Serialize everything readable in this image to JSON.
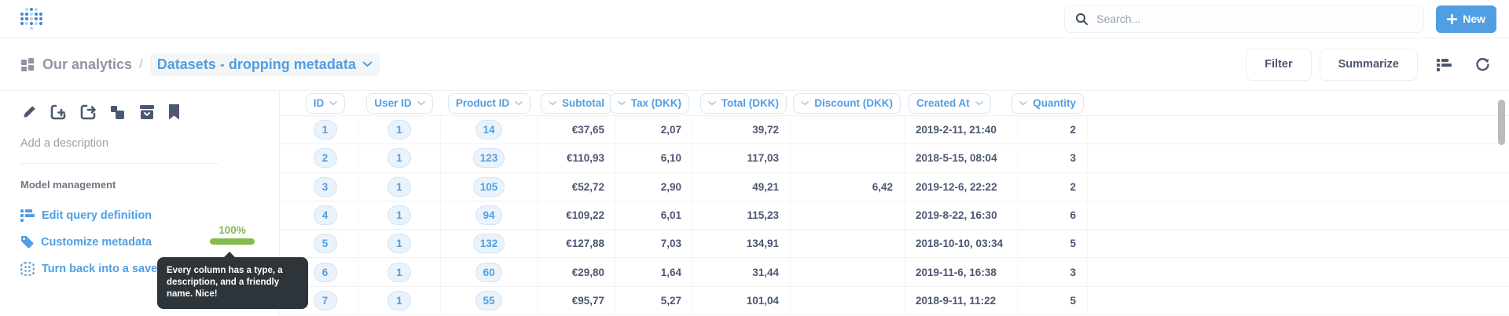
{
  "topnav": {
    "search_placeholder": "Search...",
    "new_label": "New"
  },
  "breadcrumb": {
    "collection_label": "Our analytics",
    "separator": "/",
    "current_label": "Datasets - dropping metadata"
  },
  "toolbar": {
    "filter_label": "Filter",
    "summarize_label": "Summarize"
  },
  "sidebar": {
    "description_placeholder": "Add a description",
    "section_title": "Model management",
    "links": [
      {
        "label": "Edit query definition",
        "icon": "notebook-list-icon"
      },
      {
        "label": "Customize metadata",
        "icon": "tag-icon"
      },
      {
        "label": "Turn back into a saved question",
        "icon": "model-frame-icon"
      }
    ],
    "metadata_progress": {
      "label": "100%"
    },
    "tooltip_text": "Every column has a type, a description, and a friendly name. Nice!",
    "action_icons": [
      "pencil-icon",
      "add-to-dashboard-icon",
      "move-icon",
      "duplicate-icon",
      "archive-icon",
      "bookmark-icon"
    ]
  },
  "table": {
    "columns": [
      {
        "label": "ID",
        "chevron": "right",
        "align": "center"
      },
      {
        "label": "User ID",
        "chevron": "right",
        "align": "center"
      },
      {
        "label": "Product ID",
        "chevron": "right",
        "align": "center"
      },
      {
        "label": "Subtotal",
        "chevron": "left",
        "align": "right"
      },
      {
        "label": "Tax (DKK)",
        "chevron": "left",
        "align": "right"
      },
      {
        "label": "Total (DKK)",
        "chevron": "left",
        "align": "right"
      },
      {
        "label": "Discount (DKK)",
        "chevron": "left",
        "align": "right"
      },
      {
        "label": "Created At",
        "chevron": "right",
        "align": "left"
      },
      {
        "label": "Quantity",
        "chevron": "left",
        "align": "right"
      }
    ],
    "rows": [
      [
        "1",
        "1",
        "14",
        "€37,65",
        "2,07",
        "39,72",
        "",
        "2019-2-11, 21:40",
        "2"
      ],
      [
        "2",
        "1",
        "123",
        "€110,93",
        "6,10",
        "117,03",
        "",
        "2018-5-15, 08:04",
        "3"
      ],
      [
        "3",
        "1",
        "105",
        "€52,72",
        "2,90",
        "49,21",
        "6,42",
        "2019-12-6, 22:22",
        "2"
      ],
      [
        "4",
        "1",
        "94",
        "€109,22",
        "6,01",
        "115,23",
        "",
        "2019-8-22, 16:30",
        "6"
      ],
      [
        "5",
        "1",
        "132",
        "€127,88",
        "7,03",
        "134,91",
        "",
        "2018-10-10, 03:34",
        "5"
      ],
      [
        "6",
        "1",
        "60",
        "€29,80",
        "1,64",
        "31,44",
        "",
        "2019-11-6, 16:38",
        "3"
      ],
      [
        "7",
        "1",
        "55",
        "€95,77",
        "5,27",
        "101,04",
        "",
        "2018-9-11, 11:22",
        "5"
      ]
    ]
  },
  "colors": {
    "brand_blue": "#509ee3",
    "text_dark": "#4c5773",
    "text_gray": "#949aab",
    "success_green": "#84bb4c",
    "tooltip_bg": "#2d343a"
  }
}
